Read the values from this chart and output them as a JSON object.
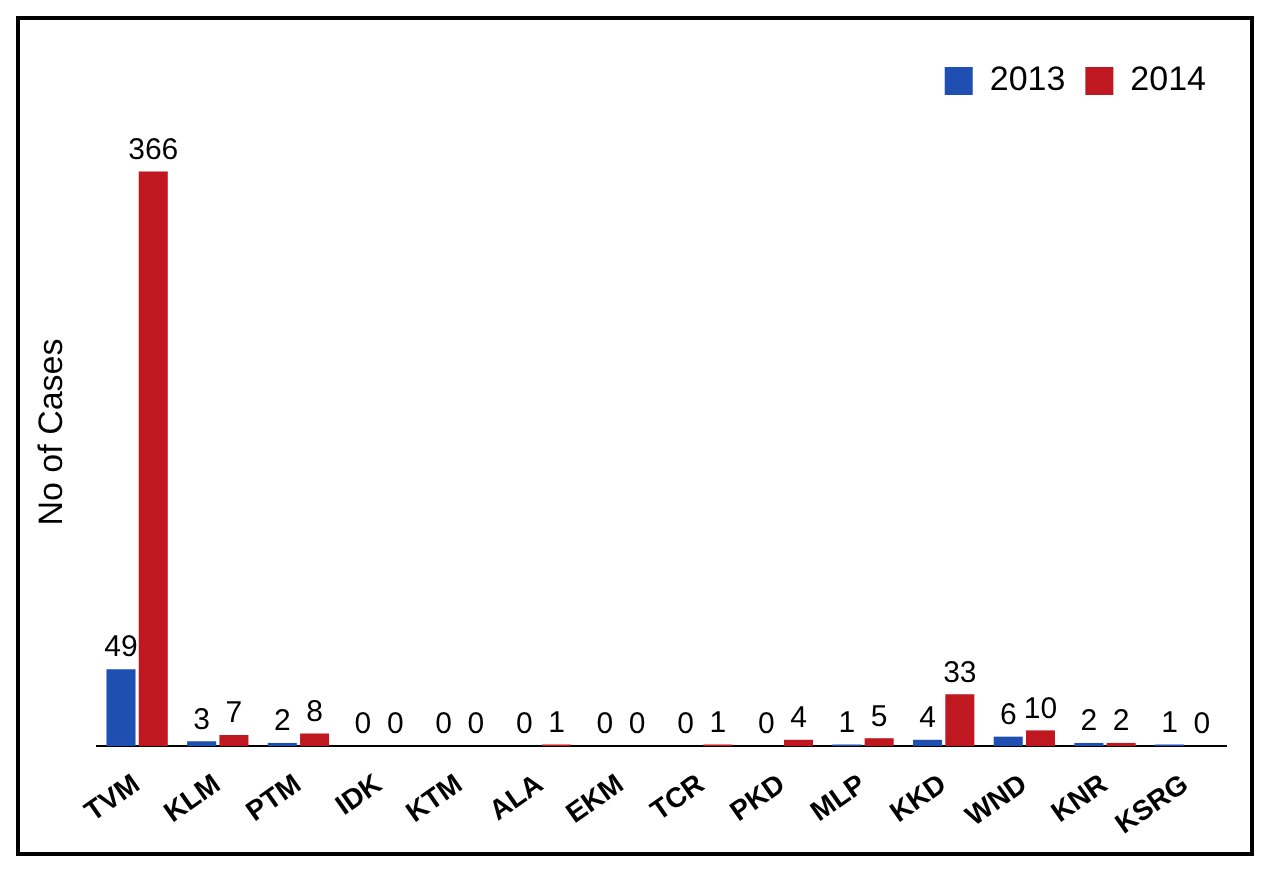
{
  "chart_data": {
    "type": "bar",
    "ylabel": "No of Cases",
    "categories": [
      "TVM",
      "KLM",
      "PTM",
      "IDK",
      "KTM",
      "ALA",
      "EKM",
      "TCR",
      "PKD",
      "MLP",
      "KKD",
      "WND",
      "KNR",
      "KSRG"
    ],
    "series": [
      {
        "name": "2013",
        "color": "#1f4fb0",
        "values": [
          49,
          3,
          2,
          0,
          0,
          0,
          0,
          0,
          0,
          1,
          4,
          6,
          2,
          1
        ]
      },
      {
        "name": "2014",
        "color": "#c01820",
        "values": [
          366,
          7,
          8,
          0,
          0,
          1,
          0,
          1,
          4,
          5,
          33,
          10,
          2,
          0
        ]
      }
    ],
    "data_labels": true,
    "legend": "top right",
    "grid": false,
    "tick_labels": "x"
  }
}
